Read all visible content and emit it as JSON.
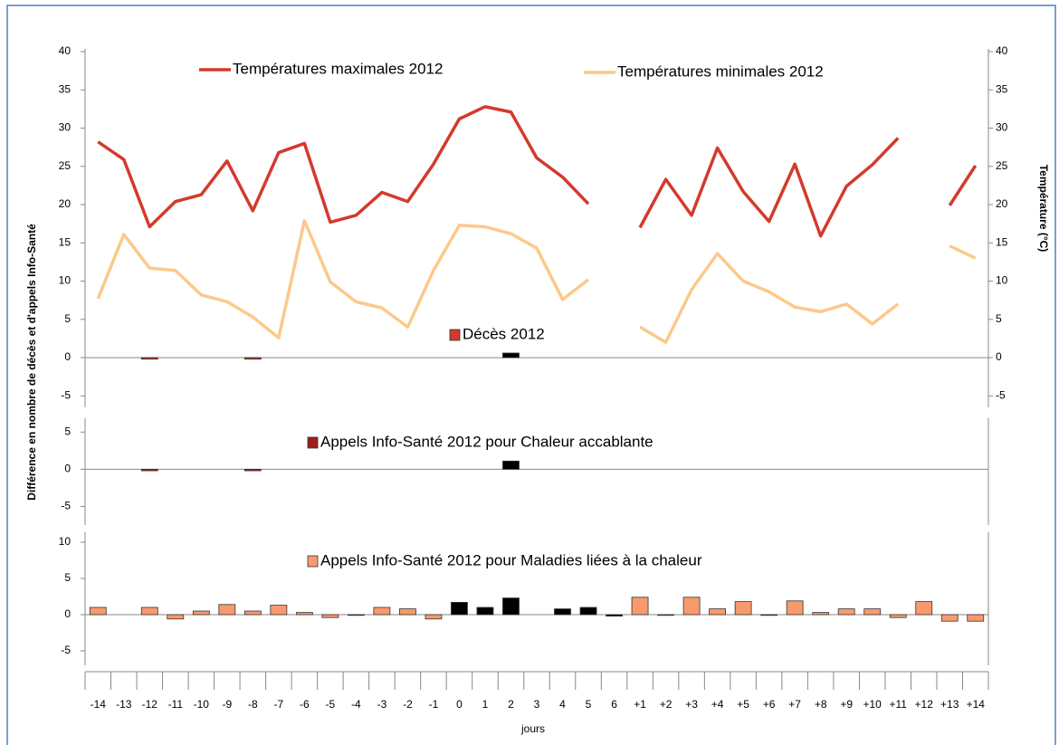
{
  "chart_data": [
    {
      "type": "combo",
      "y_label": "Différence en nombre de décès et d'appels Info-Santé",
      "y2_label": "Température (°C)",
      "ylim": [
        -6.5,
        40
      ],
      "yticks": [
        40,
        35,
        30,
        25,
        20,
        15,
        10,
        5,
        0,
        -5
      ],
      "y2lim": [
        -6.5,
        40
      ],
      "y2ticks": [
        40,
        35,
        30,
        25,
        20,
        15,
        10,
        5,
        0,
        -5
      ],
      "series": [
        {
          "name": "Températures maximales 2012",
          "type": "line",
          "axis": "y2",
          "color": "#d33a2c",
          "values": [
            28.2,
            25.9,
            17.1,
            20.4,
            21.3,
            25.7,
            19.2,
            26.8,
            28.0,
            17.7,
            18.6,
            21.6,
            20.4,
            25.3,
            31.2,
            32.8,
            32.1,
            26.1,
            23.6,
            20.1,
            null,
            17.0,
            23.3,
            18.6,
            27.4,
            21.7,
            17.8,
            25.3,
            15.9,
            22.4,
            25.2,
            28.7,
            null,
            19.9,
            25.1
          ]
        },
        {
          "name": "Températures minimales 2012",
          "type": "line",
          "axis": "y2",
          "color": "#fcc98a",
          "values": [
            7.7,
            16.1,
            11.7,
            11.4,
            8.2,
            7.3,
            5.3,
            2.6,
            17.9,
            9.9,
            7.3,
            6.5,
            4.0,
            11.4,
            17.3,
            17.1,
            16.2,
            14.3,
            7.6,
            10.2,
            null,
            4.0,
            2.0,
            8.9,
            13.6,
            10.0,
            8.6,
            6.6,
            6.0,
            7.0,
            4.4,
            7.0,
            null,
            14.6,
            13.0
          ]
        },
        {
          "name": "Décès 2012",
          "type": "bar",
          "color": "#d33a2c",
          "values": [
            null,
            null,
            -0.2,
            null,
            null,
            null,
            -0.2,
            null,
            null,
            null,
            null,
            null,
            null,
            null,
            null,
            null,
            0.6,
            null,
            null,
            null,
            null,
            null,
            null,
            null,
            null,
            null,
            null,
            null,
            null,
            null,
            null,
            null,
            null,
            null,
            null
          ],
          "colors": [
            "#d33a2c",
            "#d33a2c",
            "#d33a2c",
            "#d33a2c",
            "#d33a2c",
            "#d33a2c",
            "#d33a2c",
            "#d33a2c",
            "#d33a2c",
            "#d33a2c",
            "#d33a2c",
            "#d33a2c",
            "#d33a2c",
            "#d33a2c",
            "#d33a2c",
            "#d33a2c",
            "#000000",
            "#d33a2c",
            "#d33a2c",
            "#d33a2c",
            "#d33a2c",
            "#d33a2c",
            "#d33a2c",
            "#d33a2c",
            "#d33a2c",
            "#d33a2c",
            "#d33a2c",
            "#d33a2c",
            "#d33a2c",
            "#d33a2c",
            "#d33a2c",
            "#d33a2c",
            "#d33a2c",
            "#d33a2c",
            "#d33a2c"
          ]
        }
      ]
    },
    {
      "type": "bar",
      "ylim": [
        -7.5,
        6.5
      ],
      "yticks": [
        5,
        0,
        -5
      ],
      "series": [
        {
          "name": "Appels Info-Santé 2012 pour Chaleur accablante",
          "type": "bar",
          "color": "#a01e1e",
          "values": [
            null,
            null,
            -0.2,
            null,
            null,
            null,
            -0.2,
            null,
            null,
            null,
            null,
            null,
            null,
            null,
            null,
            null,
            1.1,
            null,
            null,
            null,
            null,
            null,
            null,
            null,
            null,
            null,
            null,
            null,
            null,
            null,
            null,
            null,
            null,
            null,
            null
          ],
          "colors": [
            "#a01e1e",
            "#a01e1e",
            "#a01e1e",
            "#a01e1e",
            "#a01e1e",
            "#a01e1e",
            "#a01e1e",
            "#a01e1e",
            "#a01e1e",
            "#a01e1e",
            "#a01e1e",
            "#a01e1e",
            "#a01e1e",
            "#a01e1e",
            "#a01e1e",
            "#a01e1e",
            "#000000",
            "#a01e1e",
            "#a01e1e",
            "#a01e1e",
            "#a01e1e",
            "#a01e1e",
            "#a01e1e",
            "#a01e1e",
            "#a01e1e",
            "#a01e1e",
            "#a01e1e",
            "#a01e1e",
            "#a01e1e",
            "#a01e1e",
            "#a01e1e",
            "#a01e1e",
            "#a01e1e",
            "#a01e1e",
            "#a01e1e"
          ]
        }
      ]
    },
    {
      "type": "bar",
      "x_label": "jours",
      "categories": [
        "-14",
        "-13",
        "-12",
        "-11",
        "-10",
        "-9",
        "-8",
        "-7",
        "-6",
        "-5",
        "-4",
        "-3",
        "-2",
        "-1",
        "0",
        "1",
        "2",
        "3",
        "4",
        "5",
        "6",
        "+1",
        "+2",
        "+3",
        "+4",
        "+5",
        "+6",
        "+7",
        "+8",
        "+9",
        "+10",
        "+11",
        "+12",
        "+13",
        "+14"
      ],
      "ylim": [
        -7,
        11
      ],
      "yticks": [
        10,
        5,
        0,
        -5
      ],
      "series": [
        {
          "name": "Appels Info-Santé 2012 pour Maladies liées à la chaleur",
          "type": "bar",
          "color": "#f79a6e",
          "values": [
            1.0,
            null,
            1.0,
            -0.6,
            0.5,
            1.4,
            0.5,
            1.3,
            0.3,
            -0.4,
            -0.1,
            1.0,
            0.8,
            -0.6,
            1.7,
            1.0,
            2.3,
            null,
            0.8,
            1.0,
            -0.2,
            2.4,
            -0.1,
            2.4,
            0.8,
            1.8,
            -0.1,
            1.9,
            0.3,
            0.8,
            0.8,
            -0.4,
            1.8,
            -0.9,
            -0.9
          ],
          "colors": [
            "#f79a6e",
            "#f79a6e",
            "#f79a6e",
            "#f79a6e",
            "#f79a6e",
            "#f79a6e",
            "#f79a6e",
            "#f79a6e",
            "#f79a6e",
            "#f79a6e",
            "#f79a6e",
            "#f79a6e",
            "#f79a6e",
            "#f79a6e",
            "#000000",
            "#000000",
            "#000000",
            "#000000",
            "#000000",
            "#000000",
            "#000000",
            "#f79a6e",
            "#f79a6e",
            "#f79a6e",
            "#f79a6e",
            "#f79a6e",
            "#f79a6e",
            "#f79a6e",
            "#f79a6e",
            "#f79a6e",
            "#f79a6e",
            "#f79a6e",
            "#f79a6e",
            "#f79a6e",
            "#f79a6e"
          ]
        }
      ]
    }
  ]
}
